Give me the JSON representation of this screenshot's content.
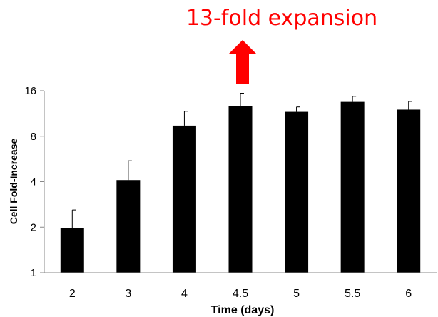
{
  "annotation": {
    "text": "13-fold expansion",
    "color": "#ff0000"
  },
  "chart_data": {
    "type": "bar",
    "title": "",
    "xlabel": "Time (days)",
    "ylabel": "Cell Fold-Increase",
    "y_scale": "log2",
    "ylim": [
      1,
      16
    ],
    "yticks": [
      "1",
      "2",
      "4",
      "8",
      "16"
    ],
    "categories": [
      "2",
      "3",
      "4",
      "4.5",
      "5",
      "5.5",
      "6"
    ],
    "values": [
      1.98,
      4.1,
      9.4,
      12.6,
      11.6,
      13.5,
      12.0
    ],
    "error_upper": [
      2.6,
      5.5,
      11.7,
      15.4,
      12.5,
      14.7,
      13.6
    ],
    "bar_color": "#000000",
    "grid": false,
    "legend": "none"
  }
}
